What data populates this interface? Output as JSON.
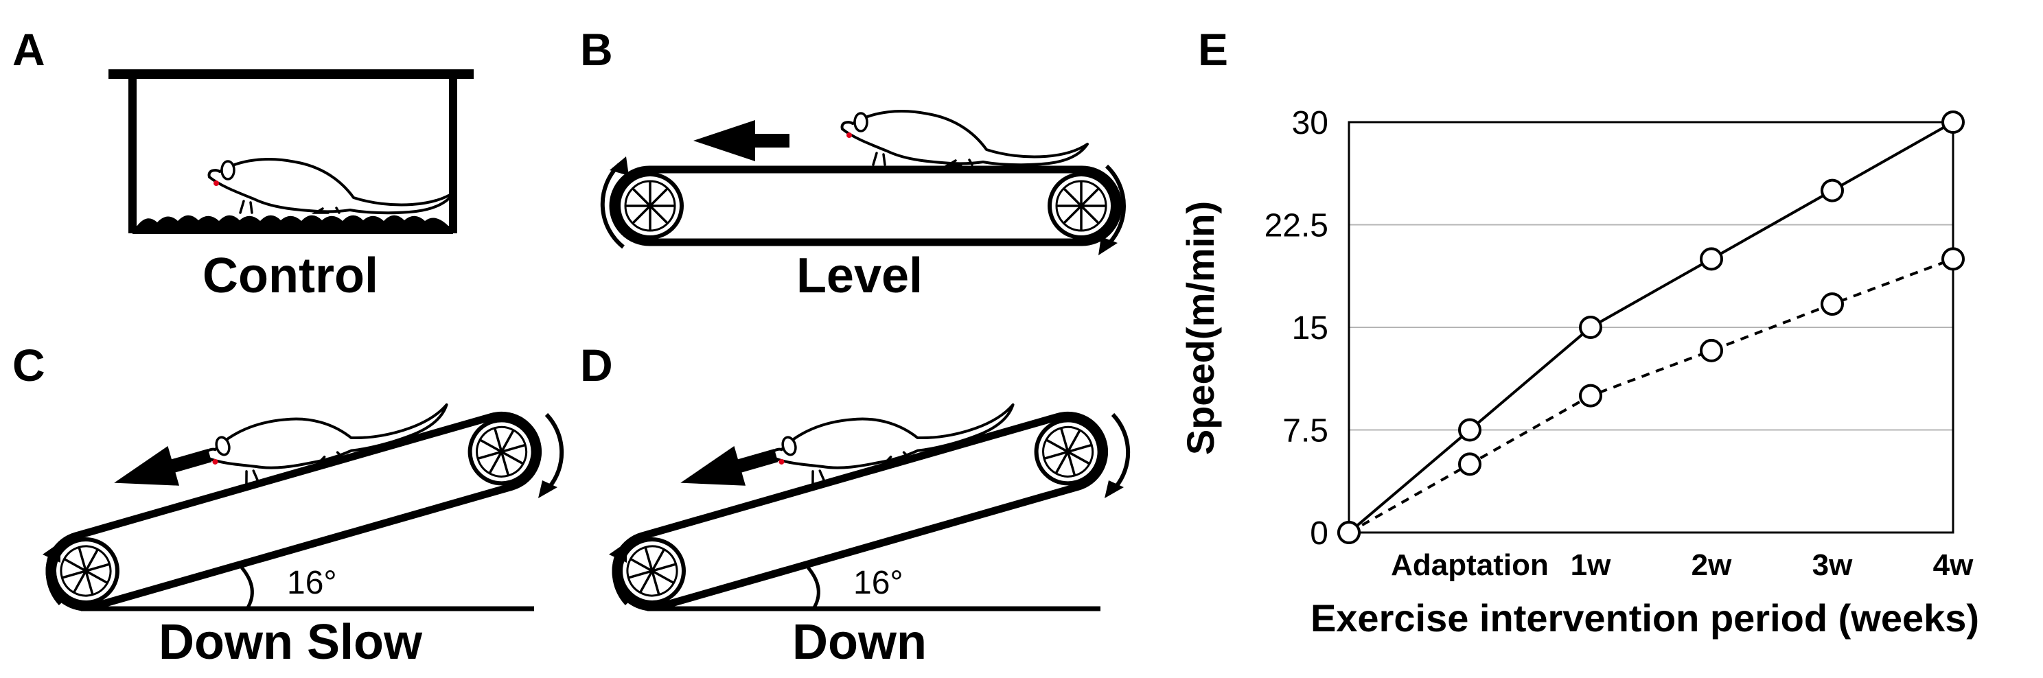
{
  "panels": {
    "A": {
      "letter": "A",
      "caption": "Control"
    },
    "B": {
      "letter": "B",
      "caption": "Level"
    },
    "C": {
      "letter": "C",
      "caption": "Down Slow",
      "angle_label": "16°"
    },
    "D": {
      "letter": "D",
      "caption": "Down",
      "angle_label": "16°"
    },
    "E": {
      "letter": "E"
    }
  },
  "chart_data": {
    "type": "line",
    "x": [
      "",
      "Adaptation",
      "1w",
      "2w",
      "3w",
      "4w"
    ],
    "series": [
      {
        "values": [
          0,
          7.5,
          15,
          20,
          25,
          30
        ],
        "style": "solid",
        "marker": "open-circle"
      },
      {
        "values": [
          0,
          5,
          10,
          13.3,
          16.7,
          20
        ],
        "style": "dashed",
        "marker": "open-circle"
      }
    ],
    "yticks": [
      "0",
      "7.5",
      "15",
      "22.5",
      "30"
    ],
    "ylim": [
      0,
      30
    ],
    "ylabel": "Speed(m/min)",
    "xlabel": "Exercise intervention period (weeks)",
    "grid": "horizontal",
    "colors": {
      "line": "#000000",
      "grid": "#b5b5b5",
      "marker_fill": "#ffffff"
    }
  },
  "colors": {
    "ink": "#000000",
    "rat_eye": "#e0001a"
  }
}
